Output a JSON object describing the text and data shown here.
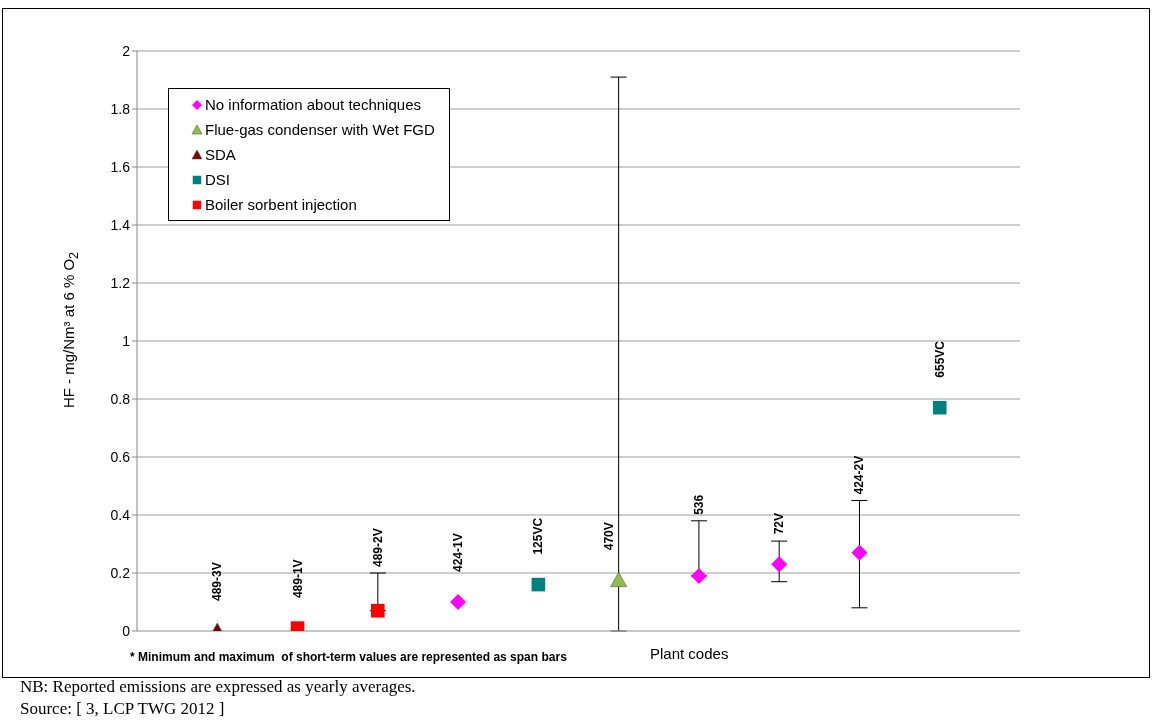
{
  "chart_data": {
    "type": "scatter",
    "xlabel": "Plant codes",
    "ylabel": "HF - mg/Nm³ at 6 % O$_{2}$",
    "categories": [
      "489-3V",
      "489-1V",
      "489-2V",
      "424-1V",
      "125VC",
      "470V",
      "536",
      "72V",
      "424-2V",
      "655VC"
    ],
    "series": [
      {
        "name": "No information about techniques",
        "color": "#ff00ff",
        "marker": "diamond",
        "values": [
          null,
          null,
          null,
          0.1,
          null,
          null,
          0.19,
          0.23,
          0.27,
          null
        ],
        "errors": [
          null,
          null,
          null,
          null,
          null,
          null,
          [
            0.19,
            0.38
          ],
          [
            0.17,
            0.31
          ],
          [
            0.08,
            0.45
          ],
          null
        ]
      },
      {
        "name": "Flue-gas condenser with Wet FGD",
        "color": "#8cc04a",
        "marker": "triangle",
        "values": [
          null,
          null,
          null,
          null,
          null,
          0.175,
          null,
          null,
          null,
          null
        ],
        "errors": [
          null,
          null,
          null,
          null,
          null,
          [
            0,
            1.91
          ],
          null,
          null,
          null,
          null
        ]
      },
      {
        "name": "SDA",
        "color": "#7f0000",
        "marker": "triangle",
        "values": [
          0,
          null,
          null,
          null,
          null,
          null,
          null,
          null,
          null,
          null
        ]
      },
      {
        "name": "DSI",
        "color": "#008080",
        "marker": "square",
        "values": [
          null,
          null,
          null,
          null,
          0.16,
          null,
          null,
          null,
          null,
          0.77
        ]
      },
      {
        "name": "Boiler sorbent injection",
        "color": "#ff0000",
        "marker": "square",
        "values": [
          null,
          0.01,
          0.07,
          null,
          null,
          null,
          null,
          null,
          null,
          null
        ],
        "errors": [
          null,
          null,
          [
            0.07,
            0.2
          ],
          null,
          null,
          null,
          null,
          null,
          null,
          null
        ]
      }
    ],
    "ylim": [
      0,
      2
    ],
    "yticks": [
      0,
      0.2,
      0.4,
      0.6,
      0.8,
      1,
      1.2,
      1.4,
      1.6,
      1.8,
      2
    ],
    "grid": "y",
    "legend": "top left",
    "tick_labels": "y",
    "annotations": [
      "* Minimum and maximum  of short-term values are represented as span bars",
      "NB: Reported emissions are expressed as yearly averages.",
      "Source: [ 3, LCP TWG 2012 ]"
    ]
  }
}
